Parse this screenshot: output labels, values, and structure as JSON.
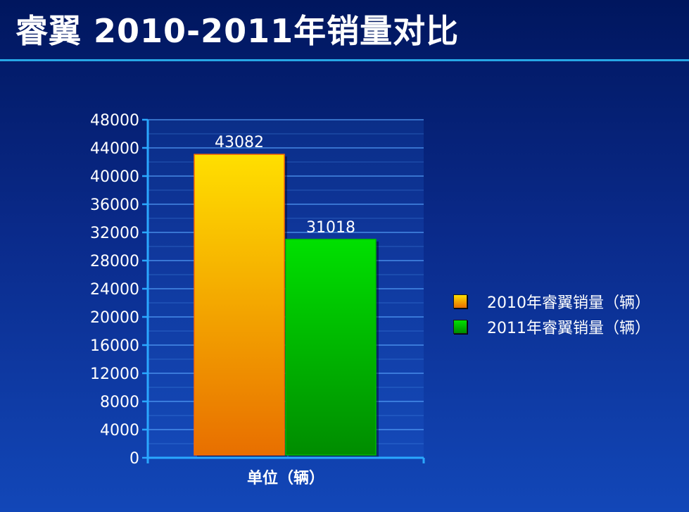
{
  "slide": {
    "title": "睿翼 2010-2011年销量对比"
  },
  "colors": {
    "series_2010_top": "#ffdf00",
    "series_2010_bottom": "#e86f00",
    "series_2011_top": "#00e000",
    "series_2011_bottom": "#008c00",
    "gridline": "#5aa6ff",
    "axis": "#2aa8ff"
  },
  "chart_data": {
    "type": "bar",
    "categories": [
      "单位（辆）"
    ],
    "series": [
      {
        "name": "2010年睿翼销量（辆）",
        "values": [
          43082
        ]
      },
      {
        "name": "2011年睿翼销量（辆）",
        "values": [
          31018
        ]
      }
    ],
    "ylim": [
      0,
      48000
    ],
    "yticks": [
      0,
      4000,
      8000,
      12000,
      16000,
      20000,
      24000,
      28000,
      32000,
      36000,
      40000,
      44000,
      48000
    ],
    "grid": true,
    "legend_position": "right",
    "data_labels": [
      "43082",
      "31018"
    ]
  }
}
